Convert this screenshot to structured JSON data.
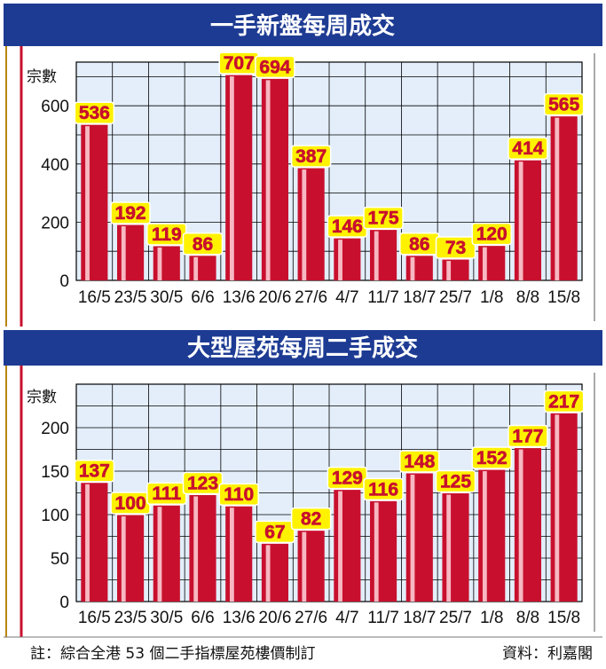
{
  "colors": {
    "banner": "#1d3b93",
    "bar": "#c8102e",
    "bar_highlight": "#ffd6dc",
    "label_bg": "#fff200",
    "grid_fill": "#e3eefa"
  },
  "chart_data": [
    {
      "type": "bar",
      "title": "一手新盤每周成交",
      "ylabel": "宗數",
      "xlabel": "",
      "ylim": [
        0,
        750
      ],
      "yticks": [
        0,
        200,
        400,
        600
      ],
      "categories": [
        "16/5",
        "23/5",
        "30/5",
        "6/6",
        "13/6",
        "20/6",
        "27/6",
        "4/7",
        "11/7",
        "18/7",
        "25/7",
        "1/8",
        "8/8",
        "15/8"
      ],
      "values": [
        536,
        192,
        119,
        86,
        707,
        694,
        387,
        146,
        175,
        86,
        73,
        120,
        414,
        565
      ]
    },
    {
      "type": "bar",
      "title": "大型屋苑每周二手成交",
      "ylabel": "宗數",
      "xlabel": "",
      "ylim": [
        0,
        250
      ],
      "yticks": [
        0,
        50,
        100,
        150,
        200
      ],
      "categories": [
        "16/5",
        "23/5",
        "30/5",
        "6/6",
        "13/6",
        "20/6",
        "27/6",
        "4/7",
        "11/7",
        "18/7",
        "25/7",
        "1/8",
        "8/8",
        "15/8"
      ],
      "values": [
        137,
        100,
        111,
        123,
        110,
        67,
        82,
        129,
        116,
        148,
        125,
        152,
        177,
        217
      ]
    }
  ],
  "footer": {
    "note": "註：綜合全港 53 個二手指標屋苑樓價制訂",
    "source": "資料：利嘉閣"
  }
}
